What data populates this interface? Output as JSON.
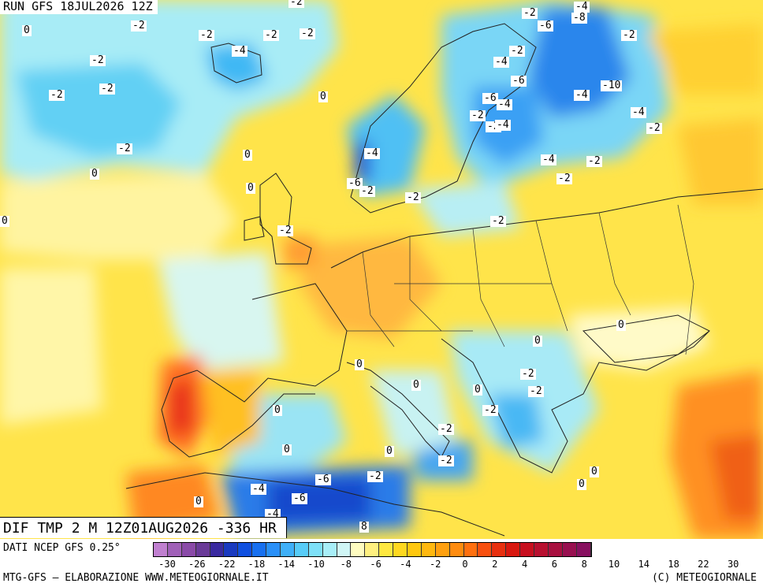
{
  "header": {
    "run": "RUN GFS 18JUL2026 12Z"
  },
  "title": {
    "text": "DIF TMP 2 M 12Z01AUG2026 -336 HR"
  },
  "footer": {
    "source": "DATI NCEP GFS 0.25°",
    "credit": "MTG-GFS — ELABORAZIONE WWW.METEOGIORNALE.IT",
    "copyright": "(C) METEOGIORNALE"
  },
  "legend": {
    "ticks": [
      "-30",
      "-26",
      "-22",
      "-18",
      "-14",
      "-10",
      "-8",
      "-6",
      "-4",
      "-2",
      "0",
      "2",
      "4",
      "6",
      "8",
      "10",
      "14",
      "18",
      "22",
      "30"
    ],
    "colors": [
      "#c080d0",
      "#a060b8",
      "#8a4aa8",
      "#6a3a98",
      "#3a2aa0",
      "#1a3ac0",
      "#1050e0",
      "#1870f0",
      "#2a90f8",
      "#40b0f8",
      "#58ccf8",
      "#7ee0f8",
      "#a8eef8",
      "#d0f6f6",
      "#fffcc0",
      "#fff080",
      "#ffe840",
      "#ffd820",
      "#ffc810",
      "#ffb810",
      "#ffa010",
      "#ff8c10",
      "#ff7010",
      "#f85010",
      "#e83010",
      "#d81810",
      "#c81020",
      "#b81030",
      "#a81040",
      "#981050",
      "#881060"
    ]
  },
  "anomaly_labels": [
    {
      "v": "-2"
    },
    {
      "v": "-4"
    },
    {
      "v": "-6"
    },
    {
      "v": "-8"
    },
    {
      "v": "-2"
    },
    {
      "v": "-2"
    },
    {
      "v": "0"
    },
    {
      "v": "-2"
    },
    {
      "v": "-2"
    },
    {
      "v": "-2"
    },
    {
      "v": "-4"
    },
    {
      "v": "-2"
    },
    {
      "v": "-2"
    },
    {
      "v": "-2"
    },
    {
      "v": "-4"
    },
    {
      "v": "-2"
    },
    {
      "v": "-2"
    },
    {
      "v": "0"
    },
    {
      "v": "-6"
    },
    {
      "v": "-6"
    },
    {
      "v": "-4"
    },
    {
      "v": "-10"
    },
    {
      "v": "-4"
    },
    {
      "v": "-4"
    },
    {
      "v": "-2"
    },
    {
      "v": "-2"
    },
    {
      "v": "-4"
    },
    {
      "v": "-2"
    },
    {
      "v": "-2"
    },
    {
      "v": "0"
    },
    {
      "v": "-4"
    },
    {
      "v": "-4"
    },
    {
      "v": "-2"
    },
    {
      "v": "0"
    },
    {
      "v": "-6"
    },
    {
      "v": "-2"
    },
    {
      "v": "-2"
    },
    {
      "v": "-2"
    },
    {
      "v": "0"
    },
    {
      "v": "-2"
    },
    {
      "v": "0"
    },
    {
      "v": "0"
    },
    {
      "v": "-2"
    },
    {
      "v": "0"
    },
    {
      "v": "0"
    },
    {
      "v": "0"
    },
    {
      "v": "0"
    },
    {
      "v": "-2"
    },
    {
      "v": "-2"
    },
    {
      "v": "0"
    },
    {
      "v": "0"
    },
    {
      "v": "-2"
    },
    {
      "v": "-2"
    },
    {
      "v": "0"
    },
    {
      "v": "-2"
    },
    {
      "v": "0"
    },
    {
      "v": "-4"
    },
    {
      "v": "-6"
    },
    {
      "v": "-6"
    },
    {
      "v": "0"
    },
    {
      "v": "-2"
    },
    {
      "v": "-4"
    },
    {
      "v": "0"
    },
    {
      "v": "8"
    }
  ]
}
